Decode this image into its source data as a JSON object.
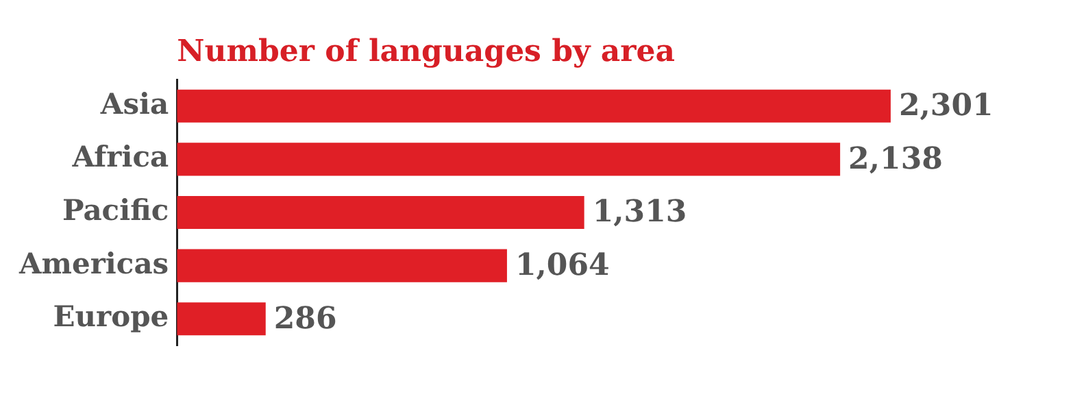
{
  "chart_data": {
    "type": "bar",
    "orientation": "horizontal",
    "title": "Number of languages by area",
    "categories": [
      "Asia",
      "Africa",
      "Pacific",
      "Americas",
      "Europe"
    ],
    "values": [
      2301,
      2138,
      1313,
      1064,
      286
    ],
    "color": "#e01f26",
    "value_labels": [
      "2,301",
      "2,138",
      "1,313",
      "1,064",
      "286"
    ]
  }
}
